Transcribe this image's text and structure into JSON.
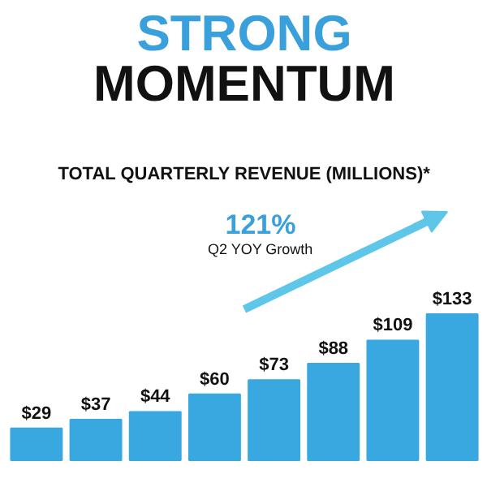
{
  "chart_data": {
    "type": "bar",
    "title": "STRONG\nMOMENTUM",
    "subtitle": "TOTAL QUARTERLY REVENUE (MILLIONS)*",
    "annotations": [
      "121%",
      "Q2 YOY Growth"
    ],
    "categories": [
      null,
      null,
      null,
      null,
      null,
      null,
      null,
      null
    ],
    "values": [
      29,
      37,
      44,
      60,
      73,
      88,
      109,
      133
    ],
    "value_labels": [
      "$29",
      "$37",
      "$44",
      "$60",
      "$73",
      "$88",
      "$109",
      "$133"
    ],
    "color": "#3aa8e0"
  }
}
